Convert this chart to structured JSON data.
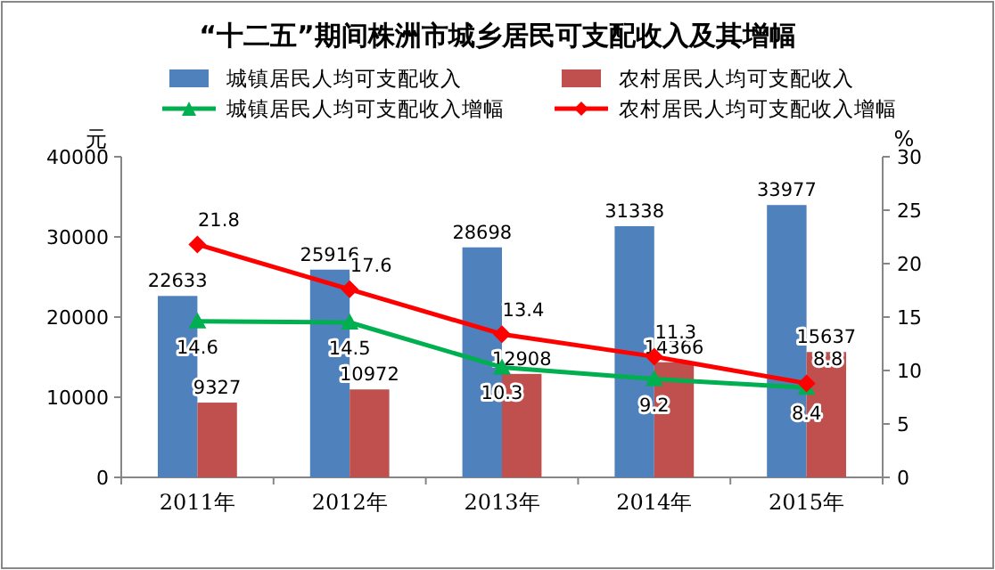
{
  "chart_data": {
    "type": "bar",
    "title": "“十二五”期间株洲市城乡居民可支配收入及其增幅",
    "categories": [
      "2011年",
      "2012年",
      "2013年",
      "2014年",
      "2015年"
    ],
    "ylabel": "元",
    "y2label": "%",
    "ylim": [
      0,
      40000
    ],
    "yticks": [
      0,
      10000,
      20000,
      30000,
      40000
    ],
    "y2lim": [
      0,
      30
    ],
    "y2ticks": [
      0,
      5,
      10,
      15,
      20,
      25,
      30
    ],
    "legend": "top",
    "data_labels": true,
    "grid": false,
    "series": [
      {
        "name": "城镇居民人均可支配收入",
        "color": "#4f81bd",
        "values": [
          22633,
          25916,
          28698,
          31338,
          33977
        ]
      },
      {
        "name": "农村居民人均可支配收入",
        "color": "#c0504d",
        "values": [
          9327,
          10972,
          12908,
          14366,
          15637
        ]
      },
      {
        "name": "城镇居民人均可支配收入增幅",
        "type": "line",
        "axis": "y2",
        "marker": "triangle",
        "color": "#00b050",
        "values": [
          14.6,
          14.5,
          10.3,
          9.2,
          8.4
        ]
      },
      {
        "name": "农村居民人均可支配收入增幅",
        "type": "line",
        "axis": "y2",
        "marker": "diamond",
        "color": "#ff0000",
        "values": [
          21.8,
          17.6,
          13.4,
          11.3,
          8.8
        ]
      }
    ]
  }
}
